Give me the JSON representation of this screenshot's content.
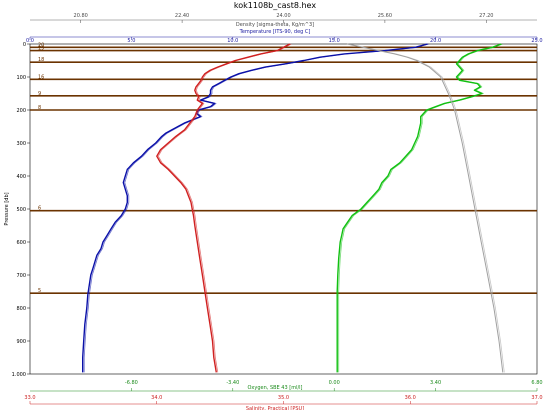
{
  "chart_data": {
    "type": "line",
    "title": "kok1108b_cast8.hex",
    "axes": {
      "density": {
        "label": "Density [sigma-theta, Kg/m^3]",
        "ticks": [
          "20.80",
          "22.40",
          "24.00",
          "25.60",
          "27.20"
        ],
        "range": [
          20.0,
          28.0
        ],
        "color": "#4a4a4a"
      },
      "temperature": {
        "label": "Temperature [ITS-90, deg C]",
        "ticks": [
          "0.0",
          "5.0",
          "10.0",
          "15.0",
          "20.0",
          "25.0"
        ],
        "range": [
          0,
          25
        ],
        "color": "#1a1aa0"
      },
      "pressure": {
        "label": "Pressure [db]",
        "ticks": [
          "0",
          "100",
          "200",
          "300",
          "400",
          "500",
          "600",
          "700",
          "800",
          "900",
          "1.000"
        ],
        "range": [
          0,
          1000
        ],
        "reversed": true
      },
      "oxygen": {
        "label": "Oxygen, SBE 43 [ml/l]",
        "ticks": [
          "-6.80",
          "-3.40",
          "0.00",
          "3.40",
          "6.80"
        ],
        "range": [
          -10.2,
          6.8
        ],
        "color": "#1a8a1a"
      },
      "salinity": {
        "label": "Salinity, Practical [PSU]",
        "ticks": [
          "33.0",
          "34.0",
          "35.0",
          "36.0",
          "37.0"
        ],
        "range": [
          33.0,
          37.0
        ],
        "color": "#cc2020"
      }
    },
    "bottle_marks": [
      {
        "label": "20",
        "pressure": 10
      },
      {
        "label": "19",
        "pressure": 20
      },
      {
        "label": "18",
        "pressure": 55
      },
      {
        "label": "16",
        "pressure": 107
      },
      {
        "label": "9",
        "pressure": 157
      },
      {
        "label": "8",
        "pressure": 200
      },
      {
        "label": "6",
        "pressure": 505
      },
      {
        "label": "5",
        "pressure": 755
      }
    ],
    "series": [
      {
        "name": "Temperature [ITS-90, deg C]",
        "axis": "temperature",
        "color": "#0a10a8",
        "points": [
          [
            0,
            19.6
          ],
          [
            10,
            19.0
          ],
          [
            20,
            17.5
          ],
          [
            30,
            15.5
          ],
          [
            40,
            14.3
          ],
          [
            50,
            13.5
          ],
          [
            60,
            12.6
          ],
          [
            70,
            11.6
          ],
          [
            80,
            10.9
          ],
          [
            90,
            10.3
          ],
          [
            100,
            9.9
          ],
          [
            110,
            9.6
          ],
          [
            120,
            9.3
          ],
          [
            130,
            9.0
          ],
          [
            140,
            8.9
          ],
          [
            150,
            8.9
          ],
          [
            160,
            8.8
          ],
          [
            170,
            8.4
          ],
          [
            180,
            9.1
          ],
          [
            190,
            8.9
          ],
          [
            200,
            8.3
          ],
          [
            210,
            8.2
          ],
          [
            220,
            8.4
          ],
          [
            230,
            8.0
          ],
          [
            240,
            7.6
          ],
          [
            250,
            7.3
          ],
          [
            260,
            7.0
          ],
          [
            270,
            6.7
          ],
          [
            280,
            6.5
          ],
          [
            300,
            6.2
          ],
          [
            320,
            5.8
          ],
          [
            340,
            5.5
          ],
          [
            360,
            5.1
          ],
          [
            380,
            4.8
          ],
          [
            400,
            4.7
          ],
          [
            420,
            4.6
          ],
          [
            440,
            4.7
          ],
          [
            460,
            4.8
          ],
          [
            480,
            4.8
          ],
          [
            500,
            4.7
          ],
          [
            520,
            4.5
          ],
          [
            540,
            4.2
          ],
          [
            560,
            4.0
          ],
          [
            580,
            3.8
          ],
          [
            600,
            3.6
          ],
          [
            620,
            3.5
          ],
          [
            640,
            3.3
          ],
          [
            660,
            3.2
          ],
          [
            680,
            3.1
          ],
          [
            700,
            3.0
          ],
          [
            720,
            2.95
          ],
          [
            740,
            2.9
          ],
          [
            760,
            2.85
          ],
          [
            800,
            2.8
          ],
          [
            850,
            2.7
          ],
          [
            900,
            2.65
          ],
          [
            950,
            2.6
          ],
          [
            995,
            2.6
          ]
        ]
      },
      {
        "name": "Salinity, Practical [PSU]",
        "axis": "salinity",
        "color": "#d02020",
        "points": [
          [
            0,
            35.05
          ],
          [
            10,
            35.0
          ],
          [
            20,
            34.95
          ],
          [
            30,
            34.82
          ],
          [
            40,
            34.72
          ],
          [
            50,
            34.62
          ],
          [
            60,
            34.55
          ],
          [
            70,
            34.48
          ],
          [
            80,
            34.42
          ],
          [
            90,
            34.38
          ],
          [
            100,
            34.36
          ],
          [
            110,
            34.35
          ],
          [
            120,
            34.33
          ],
          [
            130,
            34.31
          ],
          [
            140,
            34.3
          ],
          [
            150,
            34.31
          ],
          [
            160,
            34.33
          ],
          [
            170,
            34.32
          ],
          [
            180,
            34.36
          ],
          [
            190,
            34.34
          ],
          [
            200,
            34.32
          ],
          [
            220,
            34.3
          ],
          [
            240,
            34.26
          ],
          [
            260,
            34.22
          ],
          [
            280,
            34.15
          ],
          [
            300,
            34.09
          ],
          [
            320,
            34.03
          ],
          [
            340,
            34.0
          ],
          [
            360,
            34.03
          ],
          [
            380,
            34.09
          ],
          [
            400,
            34.14
          ],
          [
            420,
            34.19
          ],
          [
            440,
            34.23
          ],
          [
            460,
            34.25
          ],
          [
            480,
            34.27
          ],
          [
            500,
            34.28
          ],
          [
            520,
            34.29
          ],
          [
            550,
            34.3
          ],
          [
            600,
            34.32
          ],
          [
            650,
            34.34
          ],
          [
            700,
            34.36
          ],
          [
            750,
            34.38
          ],
          [
            800,
            34.4
          ],
          [
            850,
            34.42
          ],
          [
            900,
            34.44
          ],
          [
            950,
            34.45
          ],
          [
            995,
            34.47
          ]
        ]
      },
      {
        "name": "Oxygen, SBE 43 [ml/l]",
        "axis": "oxygen",
        "color": "#10c010",
        "points": [
          [
            0,
            5.6
          ],
          [
            10,
            5.3
          ],
          [
            20,
            4.8
          ],
          [
            30,
            4.5
          ],
          [
            40,
            4.3
          ],
          [
            50,
            4.2
          ],
          [
            60,
            4.1
          ],
          [
            70,
            4.2
          ],
          [
            80,
            4.3
          ],
          [
            90,
            4.2
          ],
          [
            100,
            4.1
          ],
          [
            110,
            4.2
          ],
          [
            120,
            4.8
          ],
          [
            130,
            4.9
          ],
          [
            140,
            4.7
          ],
          [
            150,
            4.95
          ],
          [
            160,
            4.6
          ],
          [
            170,
            4.2
          ],
          [
            180,
            3.7
          ],
          [
            190,
            3.4
          ],
          [
            200,
            3.1
          ],
          [
            220,
            2.9
          ],
          [
            240,
            2.9
          ],
          [
            260,
            2.85
          ],
          [
            280,
            2.8
          ],
          [
            300,
            2.7
          ],
          [
            320,
            2.6
          ],
          [
            340,
            2.4
          ],
          [
            360,
            2.2
          ],
          [
            380,
            1.9
          ],
          [
            400,
            1.8
          ],
          [
            420,
            1.6
          ],
          [
            440,
            1.5
          ],
          [
            460,
            1.3
          ],
          [
            480,
            1.1
          ],
          [
            500,
            0.9
          ],
          [
            520,
            0.6
          ],
          [
            540,
            0.45
          ],
          [
            560,
            0.3
          ],
          [
            580,
            0.25
          ],
          [
            600,
            0.2
          ],
          [
            650,
            0.15
          ],
          [
            700,
            0.12
          ],
          [
            750,
            0.1
          ],
          [
            800,
            0.1
          ],
          [
            850,
            0.1
          ],
          [
            900,
            0.1
          ],
          [
            950,
            0.1
          ],
          [
            995,
            0.1
          ]
        ]
      },
      {
        "name": "Density [sigma-theta, Kg/m^3]",
        "axis": "density",
        "color": "#a0a0a0",
        "points": [
          [
            0,
            25.0
          ],
          [
            10,
            25.25
          ],
          [
            20,
            25.5
          ],
          [
            30,
            25.75
          ],
          [
            40,
            25.95
          ],
          [
            50,
            26.1
          ],
          [
            70,
            26.3
          ],
          [
            100,
            26.48
          ],
          [
            150,
            26.6
          ],
          [
            200,
            26.7
          ],
          [
            300,
            26.82
          ],
          [
            400,
            26.92
          ],
          [
            500,
            27.02
          ],
          [
            600,
            27.12
          ],
          [
            700,
            27.22
          ],
          [
            800,
            27.32
          ],
          [
            900,
            27.4
          ],
          [
            995,
            27.46
          ]
        ]
      }
    ]
  }
}
